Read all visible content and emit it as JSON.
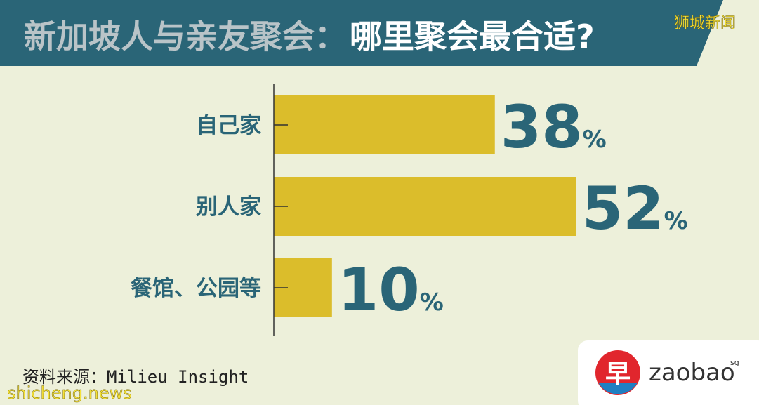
{
  "chart_data": {
    "type": "barh",
    "title": "新加坡人与亲友聚会：",
    "subtitle": "哪里聚会最合适?",
    "categories": [
      "自己家",
      "别人家",
      "餐馆、公园等"
    ],
    "values": [
      38,
      52,
      10
    ],
    "value_labels": [
      "38%",
      "52%",
      "10%"
    ],
    "color": "#dbbd2b",
    "xlim": [
      0,
      60
    ],
    "source": "资料来源：Milieu Insight"
  },
  "watermark": [
    "狮城新闻",
    "shicheng.news"
  ],
  "logo": {
    "mark": "早",
    "name": "zaobao",
    "suffix": "sg"
  }
}
